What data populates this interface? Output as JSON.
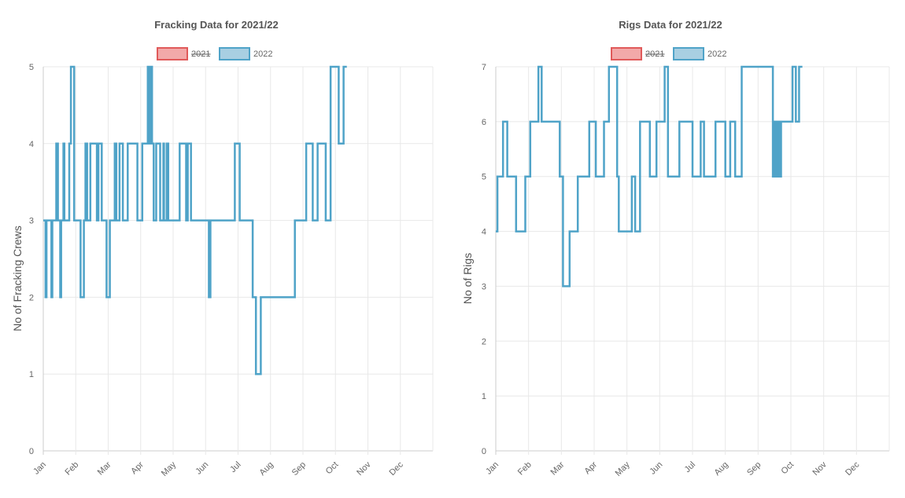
{
  "colors": {
    "series_2021_fill": "#f2a9a9",
    "series_2021_border": "#e05a5a",
    "series_2022_fill": "#a8cfe2",
    "series_2022_border": "#4fa3c8"
  },
  "chart_data": [
    {
      "type": "line",
      "title": "Fracking Data for 2021/22",
      "ylabel": "No of Fracking Crews",
      "xlabel": "",
      "ylim": [
        0,
        5
      ],
      "yticks": [
        "0",
        "1",
        "2",
        "3",
        "4",
        "5"
      ],
      "xlim": [
        0,
        12
      ],
      "xticks": [
        "Jan",
        "Feb",
        "Mar",
        "Apr",
        "May",
        "Jun",
        "Jul",
        "Aug",
        "Sep",
        "Oct",
        "Nov",
        "Dec"
      ],
      "grid": true,
      "legend": "top-center",
      "legend_entries": [
        "2021",
        "2022"
      ],
      "series": [
        {
          "name": "2021",
          "hidden": true,
          "x": [],
          "y": []
        },
        {
          "name": "2022",
          "hidden": false,
          "step": true,
          "x": [
            0.0,
            0.07,
            0.1,
            0.25,
            0.28,
            0.4,
            0.45,
            0.52,
            0.55,
            0.62,
            0.65,
            0.8,
            0.85,
            0.95,
            1.0,
            1.15,
            1.17,
            1.25,
            1.3,
            1.35,
            1.4,
            1.45,
            1.65,
            1.7,
            1.8,
            1.95,
            2.05,
            2.2,
            2.25,
            2.35,
            2.45,
            2.55,
            2.6,
            2.7,
            2.9,
            3.05,
            3.12,
            3.22,
            3.25,
            3.3,
            3.35,
            3.4,
            3.48,
            3.6,
            3.7,
            3.72,
            3.8,
            3.85,
            4.1,
            4.2,
            4.4,
            4.45,
            4.55,
            4.95,
            5.1,
            5.15,
            5.2,
            5.5,
            5.9,
            6.05,
            6.45,
            6.55,
            6.7,
            6.9,
            7.75,
            8.1,
            8.3,
            8.45,
            8.7,
            8.85,
            9.1,
            9.25
          ],
          "y": [
            3,
            2,
            3,
            2,
            3,
            4,
            3,
            2,
            3,
            4,
            3,
            4,
            5,
            3,
            3,
            2,
            2,
            3,
            4,
            3,
            3,
            4,
            3,
            4,
            3,
            2,
            3,
            4,
            3,
            4,
            3,
            3,
            4,
            4,
            3,
            4,
            4,
            5,
            4,
            5,
            4,
            3,
            4,
            3,
            4,
            3,
            4,
            3,
            3,
            4,
            3,
            4,
            3,
            3,
            2,
            3,
            3,
            3,
            4,
            3,
            2,
            1,
            2,
            2,
            3,
            4,
            3,
            4,
            3,
            5,
            4,
            5
          ]
        }
      ]
    },
    {
      "type": "line",
      "title": "Rigs Data for 2021/22",
      "ylabel": "No of Rigs",
      "xlabel": "",
      "ylim": [
        0,
        7
      ],
      "yticks": [
        "0",
        "1",
        "2",
        "3",
        "4",
        "5",
        "6",
        "7"
      ],
      "xlim": [
        0,
        12
      ],
      "xticks": [
        "Jan",
        "Feb",
        "Mar",
        "Apr",
        "May",
        "Jun",
        "Jul",
        "Aug",
        "Sep",
        "Oct",
        "Nov",
        "Dec"
      ],
      "grid": true,
      "legend": "top-center",
      "legend_entries": [
        "2021",
        "2022"
      ],
      "series": [
        {
          "name": "2021",
          "hidden": true,
          "x": [],
          "y": []
        },
        {
          "name": "2022",
          "hidden": false,
          "step": true,
          "x": [
            0.0,
            0.05,
            0.1,
            0.22,
            0.35,
            0.5,
            0.62,
            0.9,
            1.05,
            1.3,
            1.4,
            1.95,
            2.05,
            2.25,
            2.5,
            2.7,
            2.85,
            3.05,
            3.15,
            3.3,
            3.45,
            3.7,
            3.75,
            3.9,
            4.15,
            4.2,
            4.25,
            4.4,
            4.7,
            4.8,
            4.9,
            5.15,
            5.25,
            5.45,
            5.6,
            6.0,
            6.25,
            6.35,
            6.5,
            6.7,
            7.0,
            7.15,
            7.3,
            7.5,
            8.45,
            8.5,
            8.55,
            8.6,
            8.65,
            8.7,
            8.75,
            9.0,
            9.05,
            9.15,
            9.25
          ],
          "y": [
            4,
            5,
            5,
            6,
            5,
            5,
            4,
            5,
            6,
            7,
            6,
            5,
            3,
            4,
            5,
            5,
            6,
            5,
            5,
            6,
            7,
            5,
            4,
            4,
            5,
            5,
            4,
            6,
            5,
            5,
            6,
            7,
            5,
            5,
            6,
            5,
            6,
            5,
            5,
            6,
            5,
            6,
            5,
            7,
            5,
            6,
            5,
            6,
            5,
            6,
            6,
            6,
            7,
            6,
            7
          ]
        }
      ]
    }
  ]
}
